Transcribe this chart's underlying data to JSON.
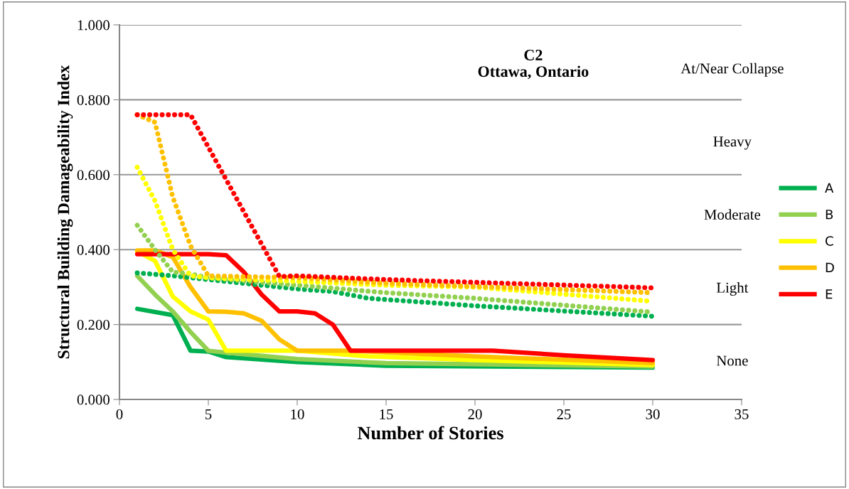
{
  "chart_data": {
    "type": "line",
    "title": "C2\nOttawa, Ontario",
    "xlabel": "Number of Stories",
    "ylabel": "Structural Building Damageability Index",
    "xlim": [
      0,
      35
    ],
    "xticks": [
      0,
      5,
      10,
      15,
      20,
      25,
      30,
      35
    ],
    "ylim": [
      0,
      1
    ],
    "yticks": [
      {
        "value": 0,
        "label": "0.000"
      },
      {
        "value": 0.2,
        "label": "0.200"
      },
      {
        "value": 0.4,
        "label": "0.400"
      },
      {
        "value": 0.6,
        "label": "0.600"
      },
      {
        "value": 0.8,
        "label": "0.800"
      },
      {
        "value": 1,
        "label": "1.000"
      }
    ],
    "grid": "y",
    "legend": "right",
    "marker": "none",
    "series": [
      {
        "name": "A",
        "color": "#00b050",
        "line_style": "solid",
        "x": [
          1,
          3,
          4,
          5,
          6,
          10,
          15,
          30
        ],
        "values": [
          0.242,
          0.225,
          0.13,
          0.128,
          0.113,
          0.1,
          0.09,
          0.085
        ]
      },
      {
        "name": "B",
        "color": "#92d050",
        "line_style": "solid",
        "x": [
          1,
          2,
          3,
          4,
          5,
          6,
          10,
          15,
          30
        ],
        "values": [
          0.33,
          0.28,
          0.235,
          0.18,
          0.13,
          0.125,
          0.108,
          0.097,
          0.088
        ]
      },
      {
        "name": "C",
        "color": "#ffff00",
        "line_style": "solid",
        "x": [
          1,
          2,
          3,
          4,
          5,
          6,
          10,
          14,
          20,
          30
        ],
        "values": [
          0.395,
          0.37,
          0.275,
          0.235,
          0.213,
          0.13,
          0.13,
          0.115,
          0.105,
          0.092
        ]
      },
      {
        "name": "D",
        "color": "#ffc000",
        "line_style": "solid",
        "x": [
          1,
          2,
          3,
          4,
          5,
          6,
          7,
          8,
          9,
          10,
          13,
          20,
          30
        ],
        "values": [
          0.398,
          0.398,
          0.38,
          0.3,
          0.235,
          0.234,
          0.23,
          0.21,
          0.16,
          0.13,
          0.13,
          0.115,
          0.097
        ]
      },
      {
        "name": "E",
        "color": "#ff0000",
        "line_style": "solid",
        "x": [
          1,
          5,
          6,
          7,
          8,
          9,
          10,
          11,
          12,
          13,
          21,
          25,
          30
        ],
        "values": [
          0.388,
          0.388,
          0.385,
          0.34,
          0.28,
          0.235,
          0.235,
          0.23,
          0.2,
          0.13,
          0.13,
          0.118,
          0.105
        ]
      },
      {
        "color": "#00b050",
        "line_style": "dotted",
        "x": [
          1,
          3,
          5,
          8,
          10,
          12,
          14,
          20,
          30
        ],
        "values": [
          0.338,
          0.33,
          0.32,
          0.305,
          0.295,
          0.288,
          0.27,
          0.25,
          0.222
        ]
      },
      {
        "color": "#92d050",
        "line_style": "dotted",
        "x": [
          1,
          2,
          3,
          4,
          5,
          10,
          15,
          20,
          30
        ],
        "values": [
          0.465,
          0.4,
          0.34,
          0.335,
          0.325,
          0.305,
          0.285,
          0.27,
          0.233
        ]
      },
      {
        "color": "#ffff00",
        "line_style": "dotted",
        "x": [
          1,
          2,
          3,
          4,
          5,
          10,
          15,
          20,
          30
        ],
        "values": [
          0.62,
          0.53,
          0.4,
          0.33,
          0.325,
          0.315,
          0.305,
          0.3,
          0.262
        ]
      },
      {
        "color": "#ffc000",
        "line_style": "dotted",
        "x": [
          1,
          2,
          3,
          4,
          5,
          10,
          15,
          30
        ],
        "values": [
          0.76,
          0.74,
          0.54,
          0.41,
          0.33,
          0.325,
          0.31,
          0.285
        ]
      },
      {
        "color": "#ff0000",
        "line_style": "dotted",
        "x": [
          1,
          4,
          9,
          10,
          15,
          30
        ],
        "values": [
          0.76,
          0.76,
          0.328,
          0.33,
          0.32,
          0.298
        ]
      }
    ],
    "annotations": [
      "At/Near Collapse",
      "Heavy",
      "Moderate",
      "Light",
      "None"
    ]
  }
}
